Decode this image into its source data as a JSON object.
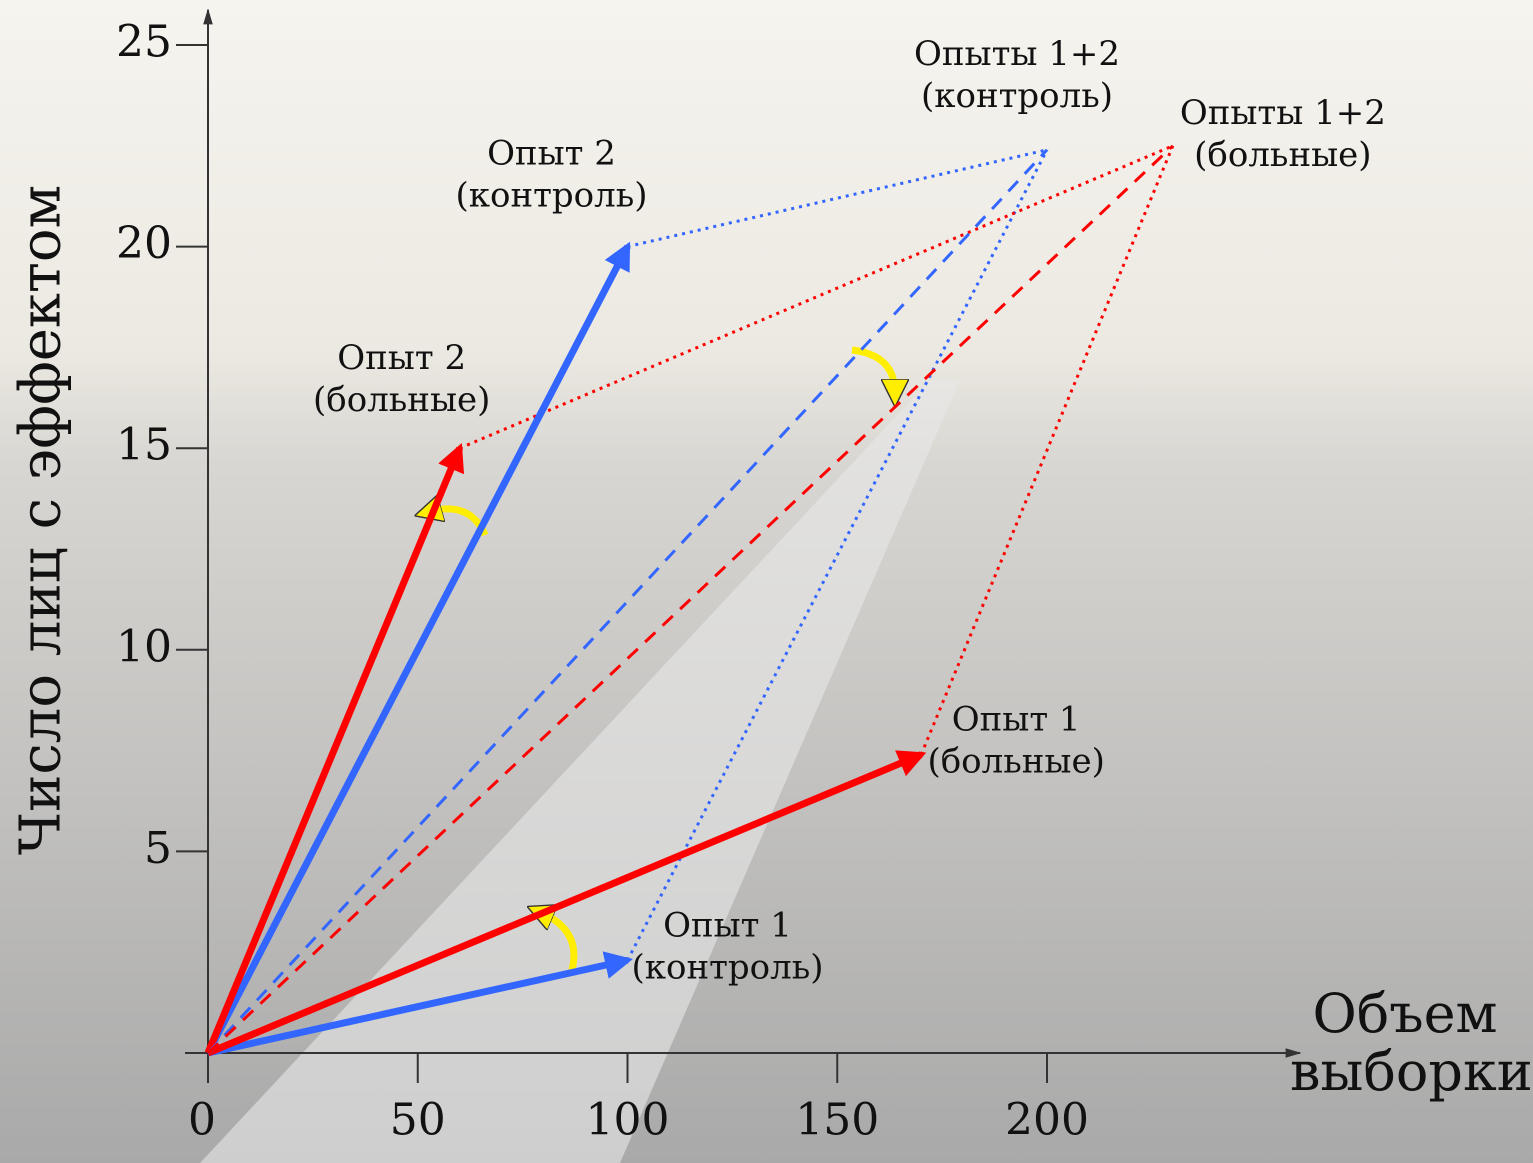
{
  "chart_data": {
    "type": "vector",
    "ylabel": "Число лиц с эффектом",
    "xlabel": "Объем выборки",
    "xlim": [
      0,
      260
    ],
    "ylim": [
      0,
      25.5
    ],
    "xticks": [
      0,
      50,
      100,
      150,
      200
    ],
    "yticks": [
      5,
      10,
      15,
      20,
      25
    ],
    "vectors": [
      {
        "label": [
          "Опыт 1",
          "(контроль)"
        ],
        "color": "#3366ff",
        "style": "solid",
        "x": 100,
        "y": 2.3
      },
      {
        "label": [
          "Опыт 1",
          "(больные)"
        ],
        "color": "#ff0000",
        "style": "solid",
        "x": 170,
        "y": 7.4
      },
      {
        "label": [
          "Опыт 2",
          "(контроль)"
        ],
        "color": "#3366ff",
        "style": "solid",
        "x": 100,
        "y": 20
      },
      {
        "label": [
          "Опыт 2",
          "(больные)"
        ],
        "color": "#ff0000",
        "style": "solid",
        "x": 60,
        "y": 15
      },
      {
        "label": [
          "Опыты 1+2",
          "(контроль)"
        ],
        "color": "#3366ff",
        "style": "dashed",
        "x": 200,
        "y": 22.4
      },
      {
        "label": [
          "Опыты 1+2",
          "(больные)"
        ],
        "color": "#ff0000",
        "style": "dashed",
        "x": 230,
        "y": 22.5
      }
    ]
  }
}
